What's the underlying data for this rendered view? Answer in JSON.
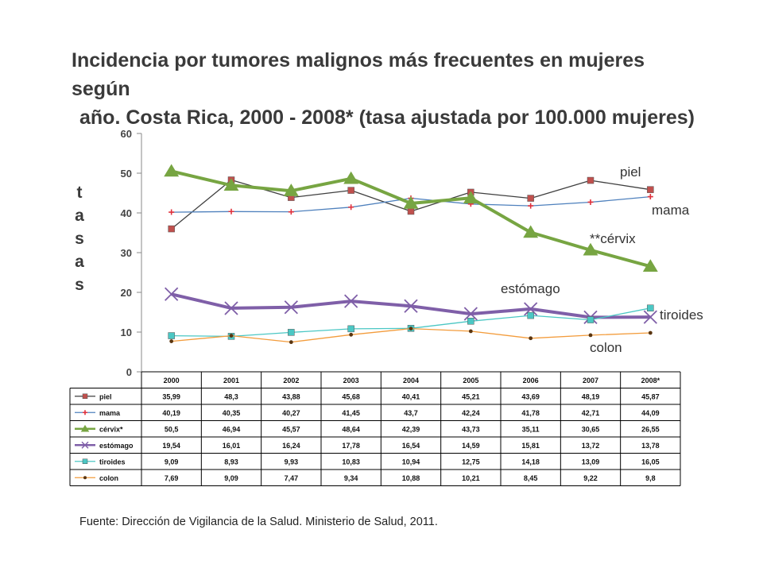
{
  "chart_data": {
    "type": "line",
    "title_lines": [
      "Incidencia por tumores malignos más frecuentes en mujeres según",
      "año. Costa Rica, 2000 - 2008* (tasa ajustada por 100.000 mujeres)"
    ],
    "ylabel_letters": [
      "t",
      "a",
      "s",
      "a",
      "s"
    ],
    "ylim": [
      0,
      60
    ],
    "yticks": [
      "0",
      "10",
      "20",
      "30",
      "40",
      "50",
      "60"
    ],
    "categories": [
      "2000",
      "2001",
      "2002",
      "2003",
      "2004",
      "2005",
      "2006",
      "2007",
      "2008*"
    ],
    "grid": false,
    "legend_placement": "table-below",
    "series": [
      {
        "name": "piel",
        "legend_label": "piel",
        "line_label": "piel",
        "color": "#3f3f3f",
        "marker": "square",
        "marker_color": "#c0504d",
        "width": 1.3,
        "values": [
          35.99,
          48.3,
          43.88,
          45.68,
          40.41,
          45.21,
          43.69,
          48.19,
          45.87
        ],
        "table": [
          "35,99",
          "48,3",
          "43,88",
          "45,68",
          "40,41",
          "45,21",
          "43,69",
          "48,19",
          "45,87"
        ]
      },
      {
        "name": "mama",
        "legend_label": "mama",
        "line_label": "mama",
        "color": "#4f81bd",
        "marker": "plus",
        "marker_color": "#e0303c",
        "width": 1.3,
        "values": [
          40.19,
          40.35,
          40.27,
          41.45,
          43.7,
          42.24,
          41.78,
          42.71,
          44.09
        ],
        "table": [
          "40,19",
          "40,35",
          "40,27",
          "41,45",
          "43,7",
          "42,24",
          "41,78",
          "42,71",
          "44,09"
        ]
      },
      {
        "name": "cervix",
        "legend_label": "cérvix*",
        "line_label": "**cérvix",
        "color": "#77a542",
        "marker": "triangle",
        "marker_color": "#77a542",
        "width": 4,
        "values": [
          50.5,
          46.94,
          45.57,
          48.64,
          42.39,
          43.73,
          35.11,
          30.65,
          26.55
        ],
        "table": [
          "50,5",
          "46,94",
          "45,57",
          "48,64",
          "42,39",
          "43,73",
          "35,11",
          "30,65",
          "26,55"
        ]
      },
      {
        "name": "estomago",
        "legend_label": "estómago",
        "line_label": "estómago",
        "color": "#7f5fa8",
        "marker": "x",
        "marker_color": "#7f5fa8",
        "width": 4,
        "values": [
          19.54,
          16.01,
          16.24,
          17.78,
          16.54,
          14.59,
          15.81,
          13.72,
          13.78
        ],
        "table": [
          "19,54",
          "16,01",
          "16,24",
          "17,78",
          "16,54",
          "14,59",
          "15,81",
          "13,72",
          "13,78"
        ]
      },
      {
        "name": "tiroides",
        "legend_label": "tiroides",
        "line_label": "tiroides",
        "color": "#4bc7c4",
        "marker": "square",
        "marker_color": "#4bc7c4",
        "width": 1.3,
        "values": [
          9.09,
          8.93,
          9.93,
          10.83,
          10.94,
          12.75,
          14.18,
          13.09,
          16.05
        ],
        "table": [
          "9,09",
          "8,93",
          "9,93",
          "10,83",
          "10,94",
          "12,75",
          "14,18",
          "13,09",
          "16,05"
        ]
      },
      {
        "name": "colon",
        "legend_label": "colon",
        "line_label": "colon",
        "color": "#f39c3c",
        "marker": "dot",
        "marker_color": "#5a3510",
        "width": 1.3,
        "values": [
          7.69,
          9.09,
          7.47,
          9.34,
          10.88,
          10.21,
          8.45,
          9.22,
          9.8
        ],
        "table": [
          "7,69",
          "9,09",
          "7,47",
          "9,34",
          "10,88",
          "10,21",
          "8,45",
          "9,22",
          "9,8"
        ]
      }
    ]
  },
  "source_text": "Fuente: Dirección de Vigilancia de la Salud. Ministerio de Salud, 2011."
}
